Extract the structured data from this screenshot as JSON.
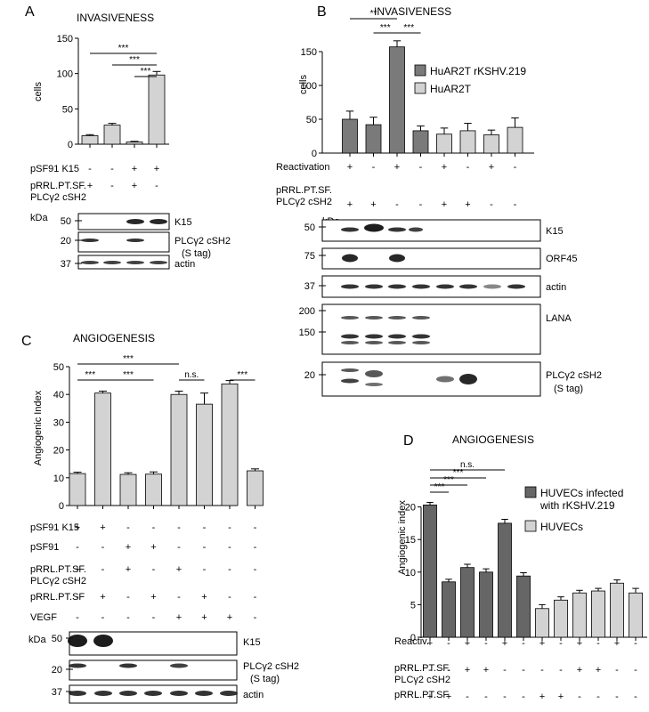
{
  "chart_data": [
    {
      "type": "bar",
      "panel": "A",
      "title": "INVASIVENESS",
      "ylabel": "cells",
      "ylim": [
        0,
        150
      ],
      "yticks": [
        0,
        50,
        100,
        150
      ],
      "values": [
        12,
        27,
        3,
        98
      ],
      "errors": [
        1.5,
        2.5,
        1,
        5
      ],
      "bar_color": "#d3d3d3",
      "significance": [
        "***",
        "***",
        "***"
      ],
      "conditions": [
        {
          "label": "pSF91 K15",
          "signs": [
            "-",
            "-",
            "+",
            "+"
          ]
        },
        {
          "label": "pRRL.PT.SF.",
          "label2": "PLCγ2 cSH2",
          "signs": [
            "+",
            "-",
            "+",
            "-"
          ]
        }
      ],
      "blot": {
        "unit": "kDa",
        "markers": [
          "50",
          "20",
          "37"
        ],
        "bands": [
          "K15",
          "PLCγ2 cSH2",
          "(S tag)",
          "actin"
        ]
      }
    },
    {
      "type": "bar",
      "panel": "B",
      "title": "INVASIVENESS",
      "ylabel": "cells",
      "ylim": [
        0,
        200
      ],
      "yticks": [
        0,
        50,
        100,
        150
      ],
      "values": [
        50,
        42,
        157,
        33,
        28,
        33,
        27,
        38
      ],
      "errors": [
        12,
        11,
        9,
        7,
        9,
        11,
        7,
        14
      ],
      "colors": [
        "#7a7a7a",
        "#7a7a7a",
        "#7a7a7a",
        "#7a7a7a",
        "#d3d3d3",
        "#d3d3d3",
        "#d3d3d3",
        "#d3d3d3"
      ],
      "significance": [
        "**",
        "***",
        "***"
      ],
      "series": [
        {
          "name": "HuAR2T  rKSHV.219",
          "color": "#7a7a7a"
        },
        {
          "name": "HuAR2T",
          "color": "#d3d3d3"
        }
      ],
      "conditions": [
        {
          "label": "Reactivation",
          "signs": [
            "+",
            "-",
            "+",
            "-",
            "+",
            "-",
            "+",
            "-"
          ]
        },
        {
          "label": "pRRL.PT.SF.",
          "label2": "PLCγ2 cSH2",
          "signs": [
            "+",
            "+",
            "-",
            "-",
            "+",
            "+",
            "-",
            "-"
          ]
        }
      ],
      "blot": {
        "unit": "kDa",
        "markers": [
          "50",
          "75",
          "37",
          "200",
          "150",
          "20"
        ],
        "bands": [
          "K15",
          "ORF45",
          "actin",
          "LANA",
          "PLCγ2 cSH2",
          "(S tag)"
        ]
      }
    },
    {
      "type": "bar",
      "panel": "C",
      "title": "ANGIOGENESIS",
      "ylabel": "Angiogenic Index",
      "ylim": [
        0,
        50
      ],
      "yticks": [
        0,
        10,
        20,
        30,
        40,
        50
      ],
      "values": [
        11.5,
        40.5,
        11.2,
        11.3,
        40,
        36.5,
        43.8,
        12.5
      ],
      "errors": [
        0.5,
        0.7,
        0.6,
        0.8,
        1.2,
        4,
        1.2,
        0.7
      ],
      "bar_color": "#d3d3d3",
      "significance": [
        "***",
        "***",
        "***",
        "n.s.",
        "***"
      ],
      "conditions": [
        {
          "label": "pSF91 K15",
          "signs": [
            "+",
            "+",
            "-",
            "-",
            "-",
            "-",
            "-",
            "-"
          ]
        },
        {
          "label": "pSF91",
          "signs": [
            "-",
            "-",
            "+",
            "+",
            "-",
            "-",
            "-",
            "-"
          ]
        },
        {
          "label": "pRRL.PT.SF.",
          "label2": "PLCγ2 cSH2",
          "signs": [
            "+",
            "-",
            "+",
            "-",
            "+",
            "-",
            "-",
            "-"
          ]
        },
        {
          "label": "pRRL.PT.SF",
          "signs": [
            "-",
            "+",
            "-",
            "+",
            "-",
            "+",
            "-",
            "-"
          ]
        },
        {
          "label": "VEGF",
          "signs": [
            "-",
            "-",
            "-",
            "-",
            "+",
            "+",
            "+",
            "-"
          ]
        }
      ],
      "blot": {
        "unit": "kDa",
        "markers": [
          "50",
          "20",
          "37"
        ],
        "bands": [
          "K15",
          "PLCγ2 cSH2",
          "(S tag)",
          "actin"
        ]
      }
    },
    {
      "type": "bar",
      "panel": "D",
      "title": "ANGIOGENESIS",
      "ylabel": "Angiogenic index",
      "ylim": [
        0,
        25
      ],
      "yticks": [
        0,
        5,
        10,
        15,
        20
      ],
      "values": [
        20.3,
        8.5,
        10.7,
        10,
        17.5,
        9.4,
        4.4,
        5.7,
        6.8,
        7.1,
        8.3,
        6.8
      ],
      "errors": [
        0.4,
        0.4,
        0.5,
        0.5,
        0.6,
        0.5,
        0.6,
        0.5,
        0.4,
        0.4,
        0.5,
        0.7
      ],
      "colors": [
        "#666666",
        "#666666",
        "#666666",
        "#666666",
        "#666666",
        "#666666",
        "#d3d3d3",
        "#d3d3d3",
        "#d3d3d3",
        "#d3d3d3",
        "#d3d3d3",
        "#d3d3d3"
      ],
      "significance": [
        "n.s.",
        "***",
        "***",
        "***"
      ],
      "series": [
        {
          "name": "HUVECs infected",
          "name2": "with rKSHV.219",
          "color": "#666666"
        },
        {
          "name": "HUVECs",
          "color": "#d3d3d3"
        }
      ],
      "conditions": [
        {
          "label": "Reactiv.",
          "signs": [
            "+",
            "-",
            "+",
            "-",
            "+",
            "-",
            "+",
            "-",
            "+",
            "-",
            "+",
            "-"
          ]
        },
        {
          "label": "pRRL.PT.SF.",
          "label2": "PLCγ2 cSH2",
          "signs": [
            "-",
            "-",
            "+",
            "+",
            "-",
            "-",
            "-",
            "-",
            "+",
            "+",
            "-",
            "-"
          ]
        },
        {
          "label": "pRRL.PT.SF",
          "signs": [
            "+",
            "+",
            "-",
            "-",
            "-",
            "-",
            "+",
            "+",
            "-",
            "-",
            "-",
            "-"
          ]
        }
      ]
    }
  ]
}
